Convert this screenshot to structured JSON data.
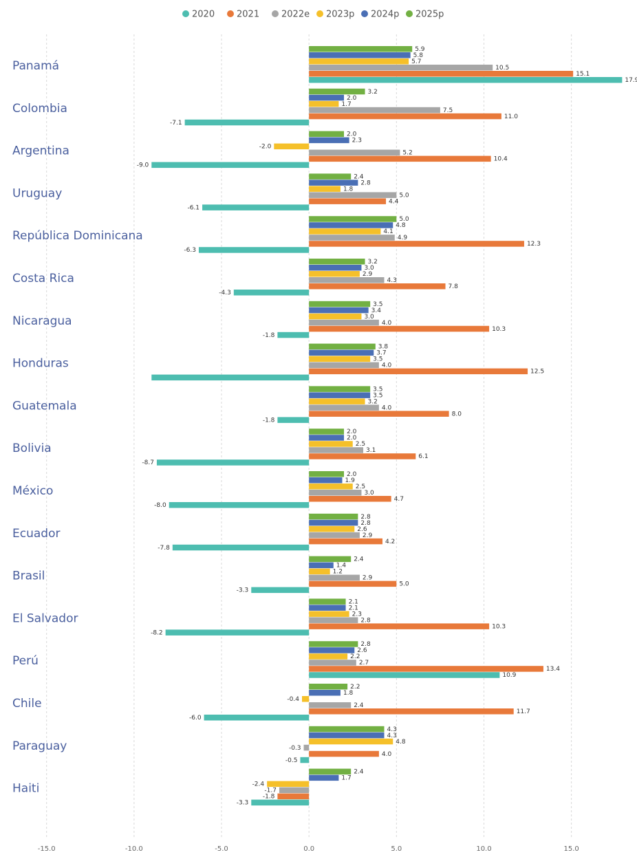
{
  "chart_data": {
    "type": "hbar",
    "categories": [
      "Panamá",
      "Colombia",
      "Argentina",
      "Uruguay",
      "República Dominicana",
      "Costa Rica",
      "Nicaragua",
      "Honduras",
      "Guatemala",
      "Bolivia",
      "México",
      "Ecuador",
      "Brasil",
      "El Salvador",
      "Perú",
      "Chile",
      "Paraguay",
      "Haiti"
    ],
    "series": [
      {
        "name": "2020",
        "color": "#4dbdb0",
        "values": [
          17.9,
          -7.1,
          -9.0,
          -6.1,
          -6.3,
          -4.3,
          -1.8,
          -9.0,
          -1.8,
          -8.7,
          -8.0,
          -7.8,
          -3.3,
          -8.2,
          10.9,
          -6.0,
          -0.5,
          -3.3
        ],
        "value_labels": [
          "17.9",
          "-7.1",
          "-9.0",
          "-6.1",
          "-6.3",
          "-4.3",
          "-1.8",
          null,
          "-1.8",
          "-8.7",
          "-8.0",
          "-7.8",
          "-3.3",
          "-8.2",
          "10.9",
          "-6.0",
          "-0.5",
          "-3.3"
        ]
      },
      {
        "name": "2021",
        "color": "#e8793a",
        "values": [
          15.1,
          11.0,
          10.4,
          4.4,
          12.3,
          7.8,
          10.3,
          12.5,
          8.0,
          6.1,
          4.7,
          4.2,
          5.0,
          10.3,
          13.4,
          11.7,
          4.0,
          -1.8
        ],
        "value_labels": [
          "15.1",
          "11.0",
          "10.4",
          "4.4",
          "12.3",
          "7.8",
          "10.3",
          "12.5",
          "8.0",
          "6.1",
          "4.7",
          "4.2",
          "5.0",
          "10.3",
          "13.4",
          "11.7",
          "4.0",
          "-1.8"
        ]
      },
      {
        "name": "2022e",
        "color": "#a6a6a6",
        "values": [
          10.5,
          7.5,
          5.2,
          5.0,
          4.9,
          4.3,
          4.0,
          4.0,
          4.0,
          3.1,
          3.0,
          2.9,
          2.9,
          2.8,
          2.7,
          2.4,
          -0.3,
          -1.7
        ],
        "value_labels": [
          "10.5",
          "7.5",
          "5.2",
          "5.0",
          "4.9",
          "4.3",
          "4.0",
          "4.0",
          "4.0",
          "3.1",
          "3.0",
          "2.9",
          "2.9",
          "2.8",
          "2.7",
          "2.4",
          "-0.3",
          "-1.7"
        ]
      },
      {
        "name": "2023p",
        "color": "#f5c02a",
        "values": [
          5.7,
          1.7,
          -2.0,
          1.8,
          4.1,
          2.9,
          3.0,
          3.5,
          3.2,
          2.5,
          2.5,
          2.6,
          1.2,
          2.3,
          2.2,
          -0.4,
          4.8,
          -2.4
        ],
        "value_labels": [
          "5.7",
          "1.7",
          "-2.0",
          "1.8",
          "4.1",
          "2.9",
          "3.0",
          "3.5",
          "3.2",
          "2.5",
          "2.5",
          "2.6",
          "1.2",
          "2.3",
          "2.2",
          "-0.4",
          "4.8",
          "-2.4"
        ]
      },
      {
        "name": "2024p",
        "color": "#4a6fb5",
        "values": [
          5.8,
          2.0,
          2.3,
          2.8,
          4.8,
          3.0,
          3.4,
          3.7,
          3.5,
          2.0,
          1.9,
          2.8,
          1.4,
          2.1,
          2.6,
          1.8,
          4.3,
          1.7
        ],
        "value_labels": [
          "5.8",
          "2.0",
          "2.3",
          "2.8",
          "4.8",
          "3.0",
          "3.4",
          "3.7",
          "3.5",
          "2.0",
          "1.9",
          "2.8",
          "1.4",
          "2.1",
          "2.6",
          "1.8",
          "4.3",
          "1.7"
        ]
      },
      {
        "name": "2025p",
        "color": "#72b043",
        "values": [
          5.9,
          3.2,
          2.0,
          2.4,
          5.0,
          3.2,
          3.5,
          3.8,
          3.5,
          2.0,
          2.0,
          2.8,
          2.4,
          2.1,
          2.8,
          2.2,
          4.3,
          2.4
        ],
        "value_labels": [
          "5.9",
          "3.2",
          "2.0",
          "2.4",
          "5.0",
          "3.2",
          "3.5",
          "3.8",
          "3.5",
          "2.0",
          "2.0",
          "2.8",
          "2.4",
          "2.1",
          "2.8",
          "2.2",
          "4.3",
          "2.4"
        ]
      }
    ],
    "xlim": [
      -15.5,
      18.2
    ],
    "xticks": [
      {
        "value": -15,
        "label": "-15.0"
      },
      {
        "value": -10,
        "label": "-10.0"
      },
      {
        "value": -5,
        "label": "-5.0"
      },
      {
        "value": 0,
        "label": "0.0"
      },
      {
        "value": 5,
        "label": "5.0"
      },
      {
        "value": 10,
        "label": "10.0"
      },
      {
        "value": 15,
        "label": "15.0"
      }
    ],
    "grid": true,
    "legend": "top"
  }
}
